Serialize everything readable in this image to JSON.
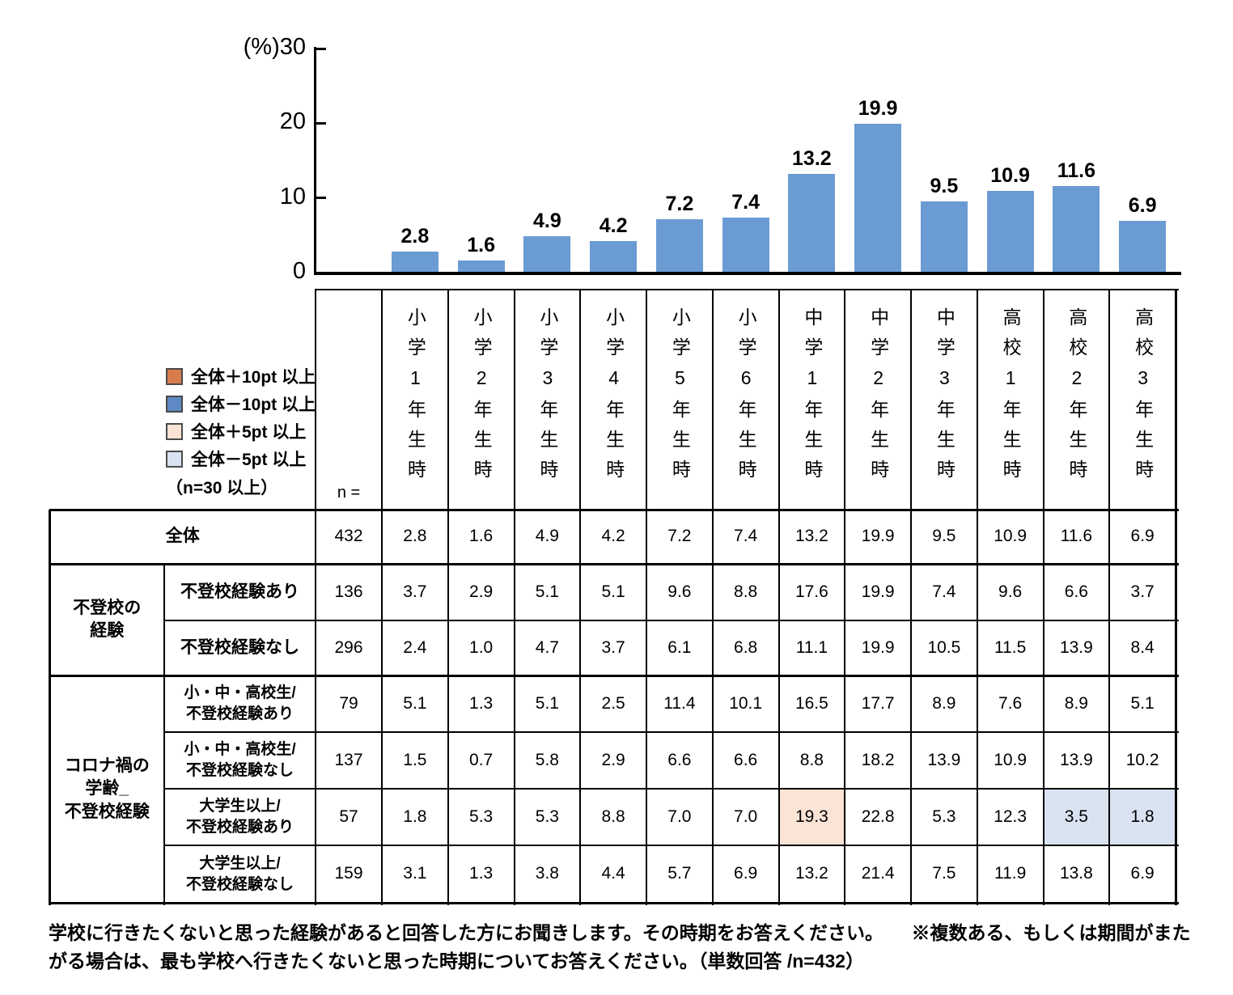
{
  "chart_data": {
    "type": "bar",
    "title": "",
    "unit_label": "(%)",
    "categories": [
      "小学1年生時",
      "小学2年生時",
      "小学3年生時",
      "小学4年生時",
      "小学5年生時",
      "小学6年生時",
      "中学1年生時",
      "中学2年生時",
      "中学3年生時",
      "高校1年生時",
      "高校2年生時",
      "高校3年生時"
    ],
    "values": [
      2.8,
      1.6,
      4.9,
      4.2,
      7.2,
      7.4,
      13.2,
      19.9,
      9.5,
      10.9,
      11.6,
      6.9
    ],
    "value_labels": [
      "2.8",
      "1.6",
      "4.9",
      "4.2",
      "7.2",
      "7.4",
      "13.2",
      "19.9",
      "9.5",
      "10.9",
      "11.6",
      "6.9"
    ],
    "xlabel": "",
    "ylabel": "(%)",
    "ylim": [
      0,
      30
    ],
    "yticks": [
      30,
      20,
      10,
      0
    ],
    "bar_color": "#6b9bd3",
    "grid": false,
    "legend_position": "none"
  },
  "legend": {
    "items": [
      {
        "key": "plus10",
        "label": "全体＋10pt 以上",
        "fill": "#d97c4d"
      },
      {
        "key": "minus10",
        "label": "全体－10pt 以上",
        "fill": "#5e89c4"
      },
      {
        "key": "plus5",
        "label": "全体＋5pt 以上",
        "fill": "#fbe3d5"
      },
      {
        "key": "minus5",
        "label": "全体－5pt 以上",
        "fill": "#d9e2f1"
      }
    ],
    "note": "（n=30 以上）"
  },
  "table": {
    "n_label": "n =",
    "columns": [
      "小学1年生時",
      "小学2年生時",
      "小学3年生時",
      "小学4年生時",
      "小学5年生時",
      "小学6年生時",
      "中学1年生時",
      "中学2年生時",
      "中学3年生時",
      "高校1年生時",
      "高校2年生時",
      "高校3年生時"
    ],
    "rows": [
      {
        "group": null,
        "label": "全体",
        "full_span": true,
        "n": "432",
        "values": [
          "2.8",
          "1.6",
          "4.9",
          "4.2",
          "7.2",
          "7.4",
          "13.2",
          "19.9",
          "9.5",
          "10.9",
          "11.6",
          "6.9"
        ],
        "highlights": {}
      },
      {
        "group": "不登校の\n経験",
        "group_rows": 2,
        "label": "不登校経験あり",
        "n": "136",
        "values": [
          "3.7",
          "2.9",
          "5.1",
          "5.1",
          "9.6",
          "8.8",
          "17.6",
          "19.9",
          "7.4",
          "9.6",
          "6.6",
          "3.7"
        ],
        "highlights": {}
      },
      {
        "group": null,
        "label": "不登校経験なし",
        "n": "296",
        "values": [
          "2.4",
          "1.0",
          "4.7",
          "3.7",
          "6.1",
          "6.8",
          "11.1",
          "19.9",
          "10.5",
          "11.5",
          "13.9",
          "8.4"
        ],
        "highlights": {}
      },
      {
        "group": "コロナ禍の\n学齢_\n不登校経験",
        "group_rows": 4,
        "label": "小・中・高校生/\n不登校経験あり",
        "n": "79",
        "values": [
          "5.1",
          "1.3",
          "5.1",
          "2.5",
          "11.4",
          "10.1",
          "16.5",
          "17.7",
          "8.9",
          "7.6",
          "8.9",
          "5.1"
        ],
        "highlights": {}
      },
      {
        "group": null,
        "label": "小・中・高校生/\n不登校経験なし",
        "n": "137",
        "values": [
          "1.5",
          "0.7",
          "5.8",
          "2.9",
          "6.6",
          "6.6",
          "8.8",
          "18.2",
          "13.9",
          "10.9",
          "13.9",
          "10.2"
        ],
        "highlights": {}
      },
      {
        "group": null,
        "label": "大学生以上/\n不登校経験あり",
        "n": "57",
        "values": [
          "1.8",
          "5.3",
          "5.3",
          "8.8",
          "7.0",
          "7.0",
          "19.3",
          "22.8",
          "5.3",
          "12.3",
          "3.5",
          "1.8"
        ],
        "highlights": {
          "6": "plus5",
          "10": "minus5",
          "11": "minus5"
        }
      },
      {
        "group": null,
        "label": "大学生以上/\n不登校経験なし",
        "n": "159",
        "values": [
          "3.1",
          "1.3",
          "3.8",
          "4.4",
          "5.7",
          "6.9",
          "13.2",
          "21.4",
          "7.5",
          "11.9",
          "13.8",
          "6.9"
        ],
        "highlights": {}
      }
    ]
  },
  "footer": {
    "line1": "学校に行きたくないと思った経験があると回答した方にお聞きします。その時期をお答えください。　　※複数ある、もしくは期間がまた",
    "line2": "がる場合は、最も学校へ行きたくないと思った時期についてお答えください。（単数回答 /n=432）"
  }
}
